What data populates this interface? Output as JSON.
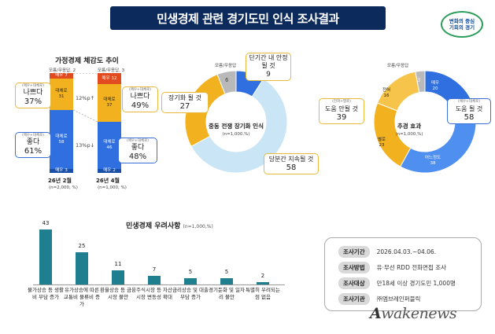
{
  "header": {
    "title": "민생경제 관련 경기도민 인식 조사결과",
    "logo_line1": "변화의 중심",
    "logo_line2": "기회의 경기"
  },
  "chart_data": [
    {
      "type": "bar",
      "title": "가정경제 체감도 추이",
      "categories": [
        "26년 2월",
        "26년 4월"
      ],
      "sample_labels": [
        "(n=2,000, %)",
        "(n=1,000, %)"
      ],
      "series": [
        {
          "name": "모름/무응답",
          "values": [
            2,
            3
          ]
        },
        {
          "name": "매우",
          "values": [
            7,
            12
          ]
        },
        {
          "name": "대체로",
          "values": [
            31,
            37
          ]
        },
        {
          "name": "대체로",
          "values": [
            58,
            46
          ]
        },
        {
          "name": "매우",
          "values": [
            3,
            2
          ]
        }
      ],
      "diffs": [
        "12%p↑",
        "13%p↓"
      ],
      "callouts": [
        {
          "sub": "(매우+대체로)",
          "label": "나쁘다",
          "value": "37%"
        },
        {
          "sub": "(매우+대체로)",
          "label": "좋다",
          "value": "61%"
        },
        {
          "sub": "(매우+대체로)",
          "label": "나쁘다",
          "value": "49%"
        },
        {
          "sub": "(매우+대체로)",
          "label": "좋다",
          "value": "48%"
        }
      ]
    },
    {
      "type": "pie",
      "title": "중동 전쟁 장기화 인식",
      "n": "(n=1,000,%)",
      "labels": [
        "단기간 내 안정될 것",
        "당분간 지속될 것",
        "장기화 될 것",
        "모름/무응답"
      ],
      "values": [
        9,
        58,
        27,
        6
      ],
      "colors": [
        "#2f6fe0",
        "#c9e5f6",
        "#f2b11e",
        "#b9b9b9"
      ]
    },
    {
      "type": "pie",
      "title": "추경 효과",
      "n": "(n=1,000,%)",
      "labels": [
        "도움 될 것",
        "도움 안될 것",
        "모름/무응답"
      ],
      "values": [
        58,
        39,
        3
      ],
      "sub_segments": [
        {
          "label": "매우",
          "value": "20"
        },
        {
          "label": "어느정도",
          "value": "38"
        },
        {
          "label": "별로",
          "value": "23"
        },
        {
          "label": "전혀",
          "value": "16"
        },
        {
          "label": "",
          "value": "3"
        }
      ],
      "callout_subs": [
        "(매우+대체로)",
        "(전혀+별로)"
      ],
      "colors": [
        "#2f6fe0",
        "#f2b11e",
        "#b9b9b9"
      ]
    },
    {
      "type": "bar",
      "title": "민생경제 우려사항",
      "n": "(n=1,000,%)",
      "categories": [
        "물가상승 등 생활비 부담 증가",
        "유가상승에 따른 교통비 물류비 증가",
        "환율상승 등 금융시장 불안",
        "주식시장 등 자산시장 변동성 확대",
        "금리상승 및 대출부담 증가",
        "경기둔화 및 일자리 불안",
        "특별히 우려되는 점 없음"
      ],
      "values": [
        43,
        25,
        11,
        7,
        5,
        5,
        2
      ],
      "ylim": [
        0,
        43
      ]
    }
  ],
  "info": {
    "rows": [
      {
        "tag": "조사기간",
        "value": "2026.04.03.~04.06."
      },
      {
        "tag": "조사방법",
        "value": "유·무선 RDD 전화면접 조사"
      },
      {
        "tag": "조사대상",
        "value": "만18세 이상 경기도민 1,000명"
      },
      {
        "tag": "조사기관",
        "value": "㈜엠브레인퍼블릭"
      }
    ]
  },
  "watermark": "wakenews"
}
